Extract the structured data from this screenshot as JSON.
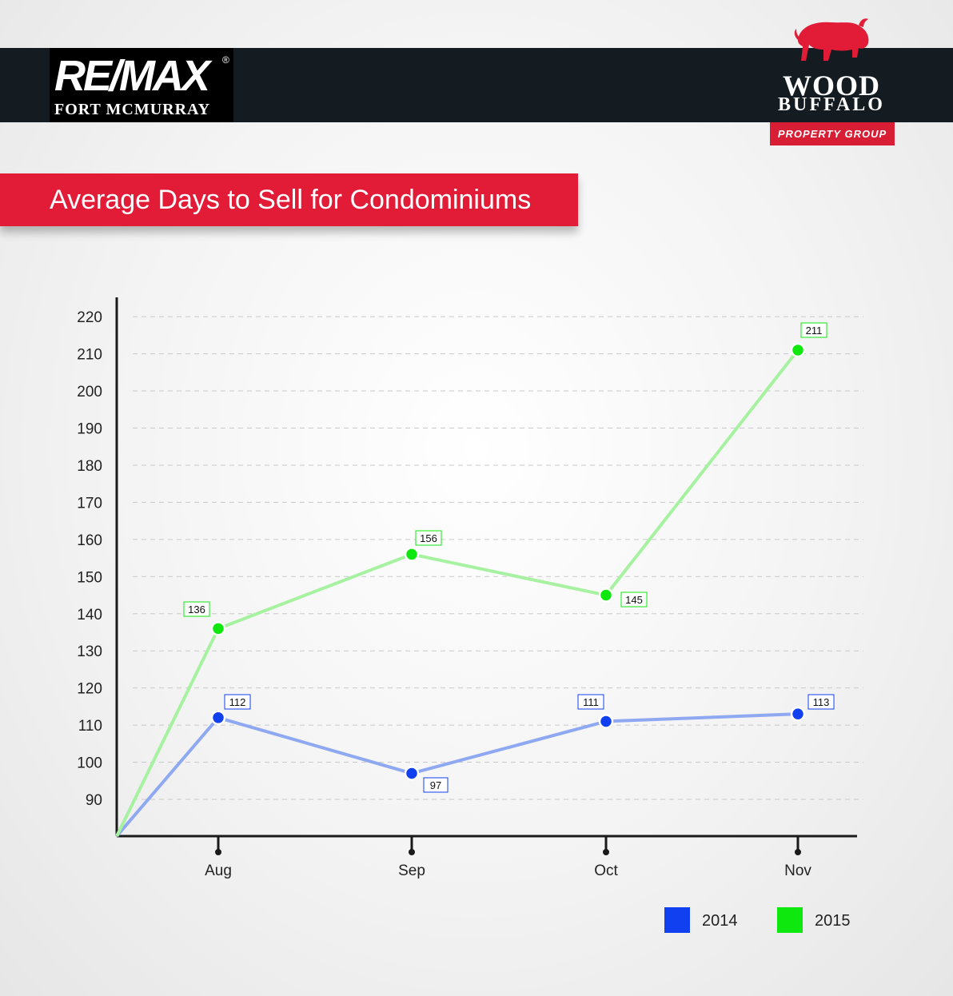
{
  "header": {
    "remax_wordmark": "RE/MAX",
    "remax_registered": "®",
    "remax_subtitle": "FORT MCMURRAY",
    "wb_line1": "WOOD",
    "wb_line2": "BUFFALO",
    "wb_tagline": "PROPERTY GROUP"
  },
  "colors": {
    "brand_red": "#e21b37",
    "header_dark": "#141c21",
    "series_2014_marker": "#1140f0",
    "series_2014_line": "#8fa8f2",
    "series_2015_marker": "#0fe80f",
    "series_2015_line": "#a6f2a0"
  },
  "chart_data": {
    "type": "line",
    "title": "Average Days to Sell for Condominiums",
    "xlabel": "",
    "ylabel": "",
    "categories": [
      "Aug",
      "Sep",
      "Oct",
      "Nov"
    ],
    "yticks": [
      90,
      100,
      110,
      120,
      130,
      140,
      150,
      160,
      170,
      180,
      190,
      200,
      210,
      220
    ],
    "ylim": [
      80,
      225
    ],
    "grid": "horizontal dashed",
    "legend_position": "bottom-right",
    "series": [
      {
        "name": "2014",
        "values": [
          112,
          97,
          111,
          113
        ]
      },
      {
        "name": "2015",
        "values": [
          136,
          156,
          145,
          211
        ]
      }
    ]
  }
}
